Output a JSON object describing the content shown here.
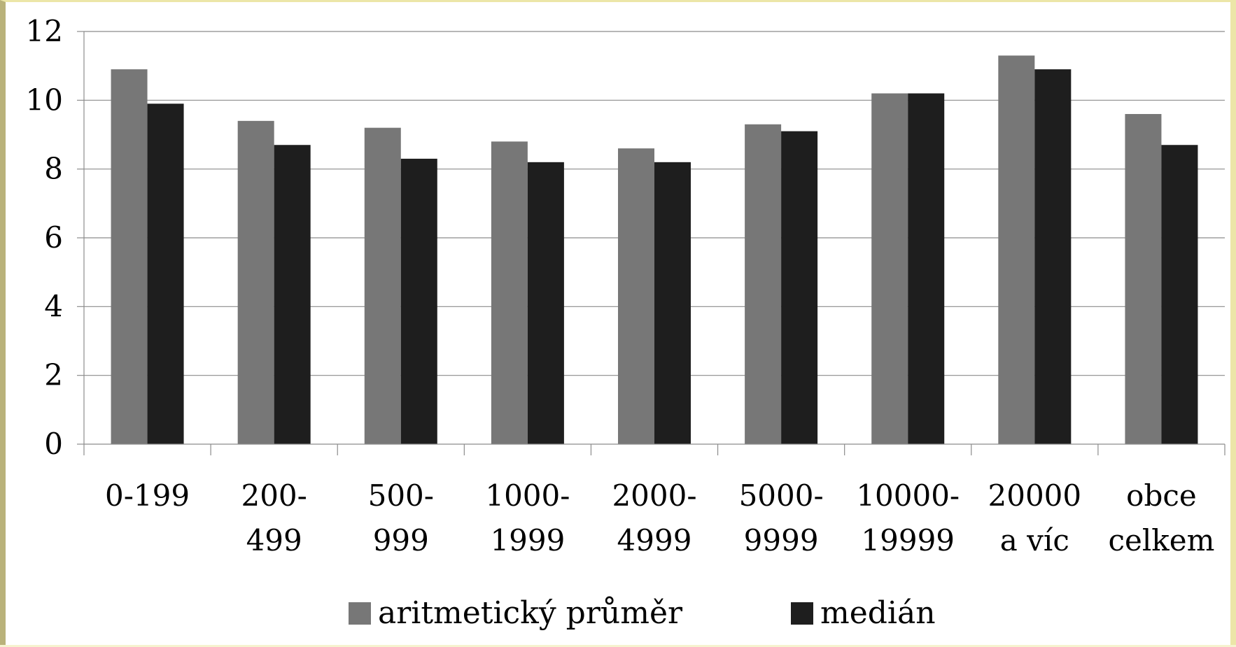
{
  "chart_data": {
    "type": "bar",
    "categories": [
      [
        "0-199"
      ],
      [
        "200-",
        "499"
      ],
      [
        "500-",
        "999"
      ],
      [
        "1000-",
        "1999"
      ],
      [
        "2000-",
        "4999"
      ],
      [
        "5000-",
        "9999"
      ],
      [
        "10000-",
        "19999"
      ],
      [
        "20000",
        "a víc"
      ],
      [
        "obce",
        "celkem"
      ]
    ],
    "series": [
      {
        "name": "aritmetický průměr",
        "color": "#777777",
        "values": [
          10.9,
          9.4,
          9.2,
          8.8,
          8.6,
          9.3,
          10.2,
          11.3,
          9.6
        ]
      },
      {
        "name": "medián",
        "color": "#1e1e1e",
        "values": [
          9.9,
          8.7,
          8.3,
          8.2,
          8.2,
          9.1,
          10.2,
          10.9,
          8.7
        ]
      }
    ],
    "ylim": [
      0,
      12
    ],
    "yticks": [
      "0",
      "2",
      "4",
      "6",
      "8",
      "10",
      "12"
    ],
    "grid": true,
    "legend_position": "bottom"
  }
}
